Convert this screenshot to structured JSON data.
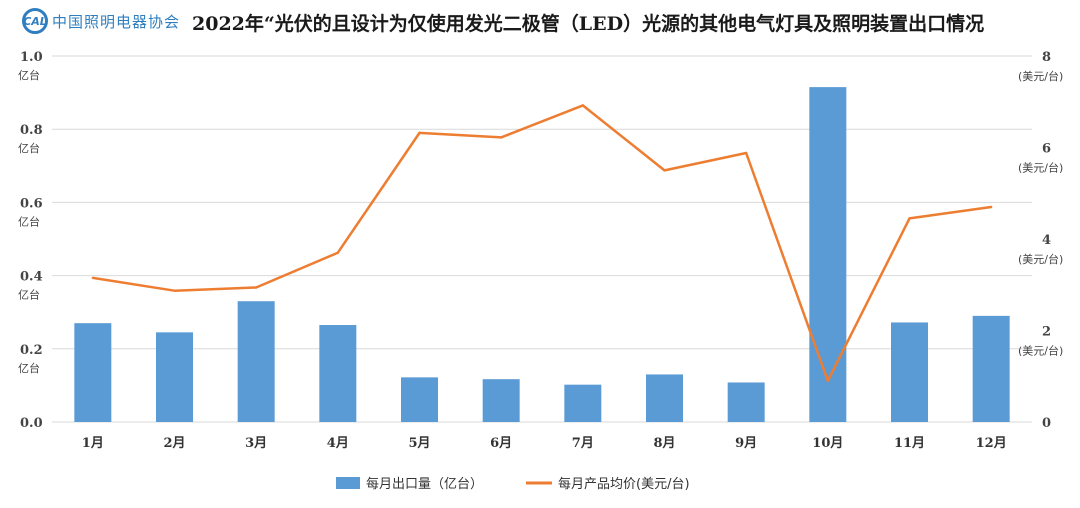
{
  "header": {
    "logo_abbr": "CAL",
    "logo_name": "中国照明电器协会",
    "title": "2022年“光伏的且设计为仅使用发光二极管（LED）光源的其他电气灯具及照明装置出口情况"
  },
  "chart_data": {
    "type": "bar+line",
    "title": "2022年“光伏的且设计为仅使用发光二极管（LED）光源的其他电气灯具及照明装置出口情况",
    "categories": [
      "1月",
      "2月",
      "3月",
      "4月",
      "5月",
      "6月",
      "7月",
      "8月",
      "9月",
      "10月",
      "11月",
      "12月"
    ],
    "series": [
      {
        "name": "每月出口量（亿台）",
        "type": "bar",
        "axis": "left",
        "color": "#5b9bd5",
        "values": [
          0.27,
          0.245,
          0.33,
          0.265,
          0.122,
          0.117,
          0.102,
          0.13,
          0.108,
          0.915,
          0.272,
          0.29
        ]
      },
      {
        "name": "每月产品均价(美元/台)",
        "type": "line",
        "axis": "right",
        "color": "#ed7d31",
        "values": [
          3.15,
          2.87,
          2.94,
          3.7,
          6.32,
          6.22,
          6.92,
          5.5,
          5.88,
          0.9,
          4.45,
          4.7
        ]
      }
    ],
    "left_axis": {
      "ylim": [
        0,
        1.0
      ],
      "ticks": [
        {
          "value": 0.0,
          "label": "0.0",
          "unit": ""
        },
        {
          "value": 0.2,
          "label": "0.2",
          "unit": "亿台"
        },
        {
          "value": 0.4,
          "label": "0.4",
          "unit": "亿台"
        },
        {
          "value": 0.6,
          "label": "0.6",
          "unit": "亿台"
        },
        {
          "value": 0.8,
          "label": "0.8",
          "unit": "亿台"
        },
        {
          "value": 1.0,
          "label": "1.0",
          "unit": "亿台"
        }
      ]
    },
    "right_axis": {
      "ylim": [
        0,
        8
      ],
      "ticks": [
        {
          "value": 0,
          "label": "0",
          "unit": ""
        },
        {
          "value": 2,
          "label": "2",
          "unit": "(美元/台)"
        },
        {
          "value": 4,
          "label": "4",
          "unit": "(美元/台)"
        },
        {
          "value": 6,
          "label": "6",
          "unit": "(美元/台)"
        },
        {
          "value": 8,
          "label": "8",
          "unit": "(美元/台)"
        }
      ]
    },
    "grid": true,
    "legend": "bottom"
  }
}
